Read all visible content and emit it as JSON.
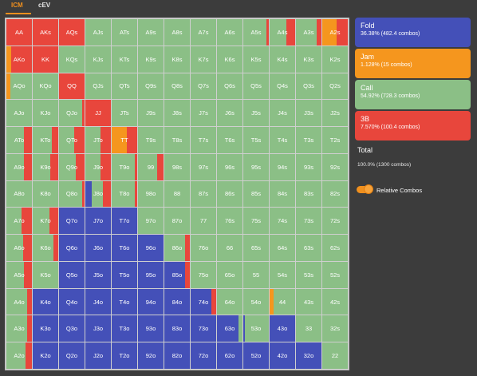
{
  "tabs": [
    {
      "label": "ICM",
      "active": true
    },
    {
      "label": "cEV",
      "active": false
    }
  ],
  "colors": {
    "fold": "#4450b8",
    "jam": "#f5961e",
    "call": "#8bbf86",
    "threebet": "#e8463c"
  },
  "legend": [
    {
      "key": "fold",
      "title": "Fold",
      "detail": "36.38% (482.4 combos)"
    },
    {
      "key": "jam",
      "title": "Jam",
      "detail": "1.128% (15 combos)"
    },
    {
      "key": "call",
      "title": "Call",
      "detail": "54.92% (728.3 combos)"
    },
    {
      "key": "threebet",
      "title": "3B",
      "detail": "7.570% (100.4 combos)"
    }
  ],
  "total": {
    "title": "Total",
    "detail": "100.0% (1300 combos)"
  },
  "toggle": {
    "label": "Relative Combos",
    "on": true
  },
  "grid": {
    "rows": [
      [
        "AA",
        "AKs",
        "AQs",
        "AJs",
        "ATs",
        "A9s",
        "A8s",
        "A7s",
        "A6s",
        "A5s",
        "A4s",
        "A3s",
        "A2s"
      ],
      [
        "AKo",
        "KK",
        "KQs",
        "KJs",
        "KTs",
        "K9s",
        "K8s",
        "K7s",
        "K6s",
        "K5s",
        "K4s",
        "K3s",
        "K2s"
      ],
      [
        "AQo",
        "KQo",
        "QQ",
        "QJs",
        "QTs",
        "Q9s",
        "Q8s",
        "Q7s",
        "Q6s",
        "Q5s",
        "Q4s",
        "Q3s",
        "Q2s"
      ],
      [
        "AJo",
        "KJo",
        "QJo",
        "JJ",
        "JTs",
        "J9s",
        "J8s",
        "J7s",
        "J6s",
        "J5s",
        "J4s",
        "J3s",
        "J2s"
      ],
      [
        "ATo",
        "KTo",
        "QTo",
        "JTo",
        "TT",
        "T9s",
        "T8s",
        "T7s",
        "T6s",
        "T5s",
        "T4s",
        "T3s",
        "T2s"
      ],
      [
        "A9o",
        "K9o",
        "Q9o",
        "J9o",
        "T9o",
        "99",
        "98s",
        "97s",
        "96s",
        "95s",
        "94s",
        "93s",
        "92s"
      ],
      [
        "A8o",
        "K8o",
        "Q8o",
        "J8o",
        "T8o",
        "98o",
        "88",
        "87s",
        "86s",
        "85s",
        "84s",
        "83s",
        "82s"
      ],
      [
        "A7o",
        "K7o",
        "Q7o",
        "J7o",
        "T7o",
        "97o",
        "87o",
        "77",
        "76s",
        "75s",
        "74s",
        "73s",
        "72s"
      ],
      [
        "A6o",
        "K6o",
        "Q6o",
        "J6o",
        "T6o",
        "96o",
        "86o",
        "76o",
        "66",
        "65s",
        "64s",
        "63s",
        "62s"
      ],
      [
        "A5o",
        "K5o",
        "Q5o",
        "J5o",
        "T5o",
        "95o",
        "85o",
        "75o",
        "65o",
        "55",
        "54s",
        "53s",
        "52s"
      ],
      [
        "A4o",
        "K4o",
        "Q4o",
        "J4o",
        "T4o",
        "94o",
        "84o",
        "74o",
        "64o",
        "54o",
        "44",
        "43s",
        "42s"
      ],
      [
        "A3o",
        "K3o",
        "Q3o",
        "J3o",
        "T3o",
        "93o",
        "83o",
        "73o",
        "63o",
        "53o",
        "43o",
        "33",
        "32s"
      ],
      [
        "A2o",
        "K2o",
        "Q2o",
        "J2o",
        "T2o",
        "92o",
        "82o",
        "72o",
        "62o",
        "52o",
        "42o",
        "32o",
        "22"
      ]
    ],
    "mix": [
      [
        {
          "r": 1
        },
        {
          "r": 1
        },
        {
          "r": 1
        },
        {
          "c": 1
        },
        {
          "c": 1
        },
        {
          "c": 1
        },
        {
          "c": 1
        },
        {
          "c": 1
        },
        {
          "c": 1
        },
        {
          "c": 0.9,
          "r": 0.1
        },
        {
          "r": 0.35,
          "c": 0.65
        },
        {
          "r": 0.2,
          "c": 0.8
        },
        {
          "j": 0.55,
          "r": 0.45
        }
      ],
      [
        {
          "j": 0.2,
          "r": 0.8
        },
        {
          "r": 1
        },
        {
          "c": 1
        },
        {
          "c": 1
        },
        {
          "c": 1
        },
        {
          "c": 1
        },
        {
          "c": 1
        },
        {
          "c": 1
        },
        {
          "c": 1
        },
        {
          "c": 1
        },
        {
          "c": 1
        },
        {
          "c": 1
        },
        {
          "c": 1
        }
      ],
      [
        {
          "j": 0.15,
          "c": 0.85
        },
        {
          "c": 1
        },
        {
          "r": 1
        },
        {
          "c": 1
        },
        {
          "c": 1
        },
        {
          "c": 1
        },
        {
          "c": 1
        },
        {
          "c": 1
        },
        {
          "c": 1
        },
        {
          "c": 1
        },
        {
          "c": 1
        },
        {
          "c": 1
        },
        {
          "c": 1
        }
      ],
      [
        {
          "c": 1
        },
        {
          "c": 1
        },
        {
          "c": 0.92,
          "r": 0.08
        },
        {
          "r": 1
        },
        {
          "c": 1
        },
        {
          "c": 1
        },
        {
          "c": 1
        },
        {
          "c": 1
        },
        {
          "c": 1
        },
        {
          "c": 1
        },
        {
          "c": 1
        },
        {
          "c": 1
        },
        {
          "c": 1
        }
      ],
      [
        {
          "c": 0.7,
          "r": 0.3
        },
        {
          "c": 0.75,
          "r": 0.25
        },
        {
          "c": 0.6,
          "r": 0.4
        },
        {
          "c": 0.6,
          "r": 0.4
        },
        {
          "j": 0.6,
          "r": 0.4
        },
        {
          "c": 1
        },
        {
          "c": 1
        },
        {
          "c": 1
        },
        {
          "c": 1
        },
        {
          "c": 1
        },
        {
          "c": 1
        },
        {
          "c": 1
        },
        {
          "c": 1
        }
      ],
      [
        {
          "c": 0.7,
          "r": 0.3
        },
        {
          "c": 0.7,
          "r": 0.3
        },
        {
          "c": 0.65,
          "r": 0.35
        },
        {
          "c": 0.6,
          "r": 0.4
        },
        {
          "c": 0.9,
          "r": 0.1
        },
        {
          "c": 0.75,
          "r": 0.25
        },
        {
          "c": 1
        },
        {
          "c": 1
        },
        {
          "c": 1
        },
        {
          "c": 1
        },
        {
          "c": 1
        },
        {
          "c": 1
        },
        {
          "c": 1
        }
      ],
      [
        {
          "c": 1
        },
        {
          "c": 1
        },
        {
          "c": 0.9,
          "r": 0.1
        },
        {
          "f": 0.25,
          "c": 0.45,
          "r": 0.3
        },
        {
          "c": 0.9,
          "r": 0.1
        },
        {
          "c": 1
        },
        {
          "c": 1
        },
        {
          "c": 1
        },
        {
          "c": 1
        },
        {
          "c": 1
        },
        {
          "c": 1
        },
        {
          "c": 1
        },
        {
          "c": 1
        }
      ],
      [
        {
          "c": 0.6,
          "r": 0.4
        },
        {
          "c": 0.65,
          "r": 0.35
        },
        {
          "f": 1
        },
        {
          "f": 1
        },
        {
          "f": 1
        },
        {
          "c": 1
        },
        {
          "c": 1
        },
        {
          "c": 1
        },
        {
          "c": 1
        },
        {
          "c": 1
        },
        {
          "c": 1
        },
        {
          "c": 1
        },
        {
          "c": 1
        }
      ],
      [
        {
          "c": 0.65,
          "r": 0.35
        },
        {
          "c": 0.8,
          "r": 0.2
        },
        {
          "f": 1
        },
        {
          "f": 1
        },
        {
          "f": 1
        },
        {
          "f": 1
        },
        {
          "c": 0.8,
          "r": 0.2
        },
        {
          "c": 1
        },
        {
          "c": 1
        },
        {
          "c": 1
        },
        {
          "c": 1
        },
        {
          "c": 1
        },
        {
          "c": 1
        }
      ],
      [
        {
          "c": 0.7,
          "r": 0.3
        },
        {
          "c": 1
        },
        {
          "f": 1
        },
        {
          "f": 1
        },
        {
          "f": 1
        },
        {
          "f": 1
        },
        {
          "f": 0.8,
          "r": 0.2
        },
        {
          "c": 1
        },
        {
          "c": 1
        },
        {
          "c": 1
        },
        {
          "c": 1
        },
        {
          "c": 1
        },
        {
          "c": 1
        }
      ],
      [
        {
          "c": 0.8,
          "r": 0.2
        },
        {
          "f": 1
        },
        {
          "f": 1
        },
        {
          "f": 1
        },
        {
          "f": 1
        },
        {
          "f": 1
        },
        {
          "f": 1
        },
        {
          "f": 0.8,
          "r": 0.2
        },
        {
          "c": 1
        },
        {
          "c": 1
        },
        {
          "j": 0.15,
          "c": 0.85
        },
        {
          "c": 1
        },
        {
          "c": 1
        }
      ],
      [
        {
          "c": 0.8,
          "r": 0.2
        },
        {
          "f": 1
        },
        {
          "f": 1
        },
        {
          "f": 1
        },
        {
          "f": 1
        },
        {
          "f": 1
        },
        {
          "f": 1
        },
        {
          "f": 1
        },
        {
          "f": 0.85,
          "c": 0.15
        },
        {
          "f": 0.05,
          "c": 0.95
        },
        {
          "f": 1
        },
        {
          "c": 1
        },
        {
          "c": 1
        }
      ],
      [
        {
          "c": 0.75,
          "r": 0.25
        },
        {
          "f": 1
        },
        {
          "f": 1
        },
        {
          "f": 1
        },
        {
          "f": 1
        },
        {
          "f": 1
        },
        {
          "f": 1
        },
        {
          "f": 1
        },
        {
          "f": 1
        },
        {
          "f": 1
        },
        {
          "f": 1
        },
        {
          "f": 1
        },
        {
          "c": 1
        }
      ]
    ]
  }
}
